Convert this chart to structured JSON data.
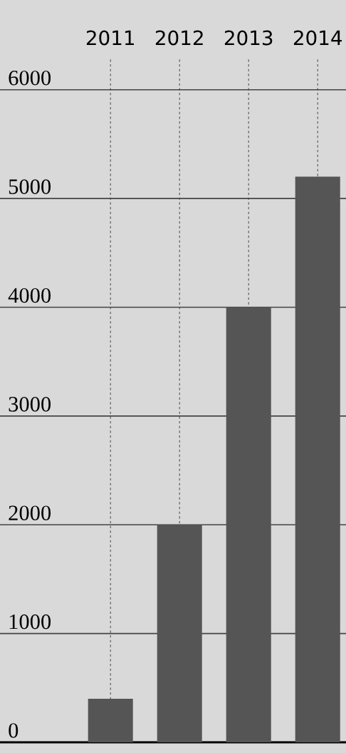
{
  "chart_data": {
    "type": "bar",
    "categories": [
      "2011",
      "2012",
      "2013",
      "2014"
    ],
    "values": [
      400,
      2000,
      4000,
      5200
    ],
    "color": "#555555",
    "ylim": [
      0,
      6300
    ],
    "yticks": [
      0,
      1000,
      2000,
      3000,
      4000,
      5000,
      6000
    ],
    "grid": true
  }
}
